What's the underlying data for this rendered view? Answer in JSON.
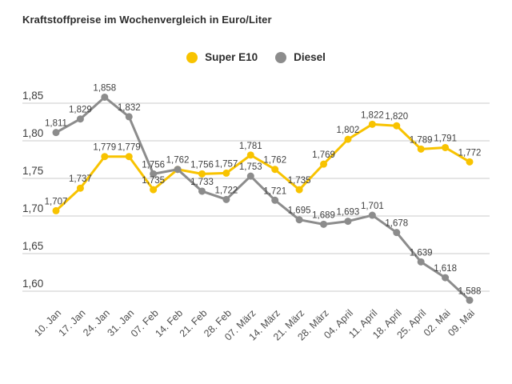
{
  "title": "Kraftstoffpreise im Wochenvergleich in Euro/Liter",
  "legend": {
    "items": [
      {
        "label": "Super E10",
        "color": "#F8C300"
      },
      {
        "label": "Diesel",
        "color": "#8C8C8C"
      }
    ]
  },
  "colors": {
    "background": "#ffffff",
    "gridline": "#cbcbcb",
    "title_text": "#2d2d2d",
    "axis_text": "#4f4f4f",
    "data_label_text": "#3f3f3f",
    "super_e10": "#F8C300",
    "diesel": "#8C8C8C"
  },
  "chart_data": {
    "type": "line",
    "title": "Kraftstoffpreise im Wochenvergleich in Euro/Liter",
    "xlabel": "",
    "ylabel": "Euro/Liter",
    "ylim": [
      1.575,
      1.875
    ],
    "grid": true,
    "legend_position": "top-center",
    "yticks": {
      "values": [
        1.85,
        1.8,
        1.75,
        1.7,
        1.65,
        1.6
      ],
      "labels": [
        "1,85",
        "1,80",
        "1,75",
        "1,70",
        "1,65",
        "1,60"
      ]
    },
    "categories": [
      "10. Jan",
      "17. Jan",
      "24. Jan",
      "31. Jan",
      "07. Feb",
      "14. Feb",
      "21. Feb",
      "28. Feb",
      "07. März",
      "14. März",
      "21. März",
      "28. März",
      "04. April",
      "11. April",
      "18. April",
      "25. April",
      "02. Mai",
      "09. Mai"
    ],
    "series": [
      {
        "name": "Super E10",
        "color": "#F8C300",
        "values": [
          1.707,
          1.737,
          1.779,
          1.779,
          1.735,
          1.762,
          1.756,
          1.757,
          1.781,
          1.762,
          1.735,
          1.769,
          1.802,
          1.822,
          1.82,
          1.789,
          1.791,
          1.772
        ],
        "labels": [
          "1,707",
          "1,737",
          "1,779",
          "1,779",
          "1,735",
          null,
          "1,756",
          "1,757",
          "1,781",
          "1,762",
          "1,735",
          "1,769",
          "1,802",
          "1,822",
          "1,820",
          "1,789",
          "1,791",
          "1,772"
        ]
      },
      {
        "name": "Diesel",
        "color": "#8C8C8C",
        "values": [
          1.811,
          1.829,
          1.858,
          1.832,
          1.756,
          1.762,
          1.733,
          1.722,
          1.753,
          1.721,
          1.695,
          1.689,
          1.693,
          1.701,
          1.678,
          1.639,
          1.618,
          1.588
        ],
        "labels": [
          "1,811",
          "1,829",
          "1,858",
          "1,832",
          "1,756",
          "1,762",
          "1,733",
          "1,722",
          "1,753",
          "1,721",
          "1,695",
          "1,689",
          "1,693",
          "1,701",
          "1,678",
          "1,639",
          "1,618",
          "1,588"
        ]
      }
    ]
  }
}
